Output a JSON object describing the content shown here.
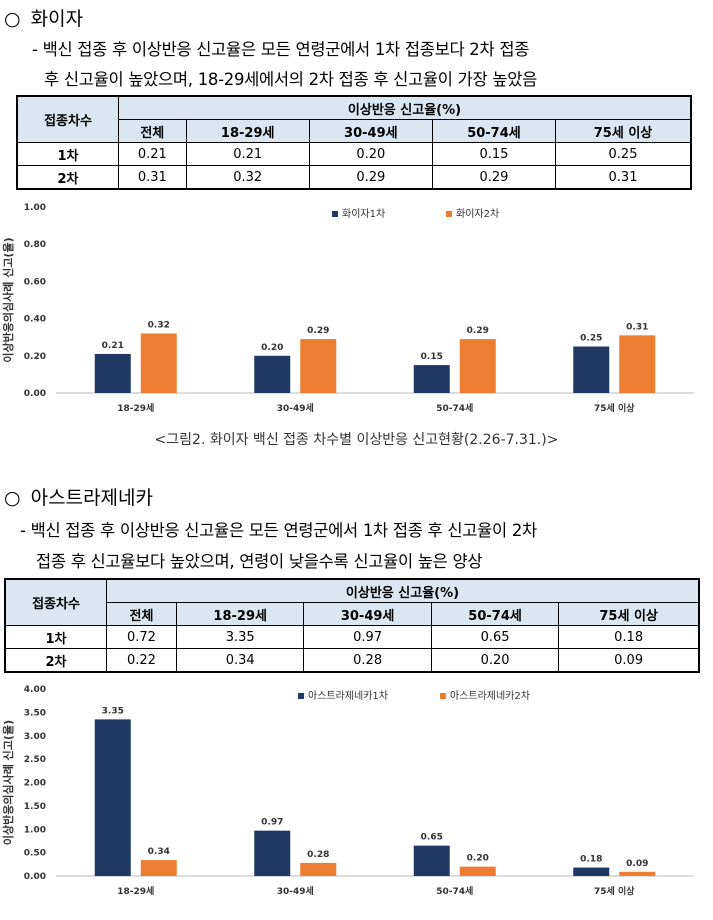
{
  "sections": [
    {
      "title": "화이자",
      "marker": "○",
      "text_lines": [
        "- 백신 접종 후 이상반응 신고율은 모든 연령군에서 1차 접종보다 2차 접종",
        "후 신고율이 높았으며, 18-29세에서의 2차 접종 후 신고율이 가장 높았음"
      ],
      "table": {
        "row_header": "접종차수",
        "group_header": "이상반응 신고율(%)",
        "columns": [
          "전체",
          "18-29세",
          "30-49세",
          "50-74세",
          "75세 이상"
        ],
        "rows": [
          {
            "label": "1차",
            "values": [
              "0.21",
              "0.21",
              "0.20",
              "0.15",
              "0.25"
            ]
          },
          {
            "label": "2차",
            "values": [
              "0.31",
              "0.32",
              "0.29",
              "0.29",
              "0.31"
            ]
          }
        ]
      },
      "caption": "<그림2. 화이자 백신 접종 차수별 이상반응 신고현황(2.26-7.31.)>"
    },
    {
      "title": "아스트라제네카",
      "marker": "○",
      "text_lines": [
        "- 백신 접종 후 이상반응 신고율은 모든 연령군에서 1차 접종 후 신고율이 2차",
        "접종 후 신고율보다 높았으며, 연령이 낮을수록 신고율이 높은 양상"
      ],
      "table": {
        "row_header": "접종차수",
        "group_header": "이상반응 신고율(%)",
        "columns": [
          "전체",
          "18-29세",
          "30-49세",
          "50-74세",
          "75세 이상"
        ],
        "rows": [
          {
            "label": "1차",
            "values": [
              "0.72",
              "3.35",
              "0.97",
              "0.65",
              "0.18"
            ]
          },
          {
            "label": "2차",
            "values": [
              "0.22",
              "0.34",
              "0.28",
              "0.20",
              "0.09"
            ]
          }
        ]
      }
    }
  ],
  "colors": {
    "series1": "#1F3864",
    "series2": "#ED7D31",
    "header_bg": "#DCE6F1"
  },
  "chart_data": [
    {
      "type": "bar",
      "ylabel": "이상반응의심사례 신고(율)",
      "categories": [
        "18-29세",
        "30-49세",
        "50-74세",
        "75세 이상"
      ],
      "series": [
        {
          "name": "화이자1차",
          "values": [
            0.21,
            0.2,
            0.15,
            0.25
          ],
          "labels": [
            "0.21",
            "0.20",
            "0.15",
            "0.25"
          ]
        },
        {
          "name": "화이자2차",
          "values": [
            0.32,
            0.29,
            0.29,
            0.31
          ],
          "labels": [
            "0.32",
            "0.29",
            "0.29",
            "0.31"
          ]
        }
      ],
      "yticks": [
        "0.00",
        "0.20",
        "0.40",
        "0.60",
        "0.80",
        "1.00"
      ],
      "ylim": [
        0,
        1.0
      ],
      "legend": "top-center"
    },
    {
      "type": "bar",
      "ylabel": "이상반응의심사례 신고(율)",
      "categories": [
        "18-29세",
        "30-49세",
        "50-74세",
        "75세 이상"
      ],
      "series": [
        {
          "name": "아스트라제네카1차",
          "values": [
            3.35,
            0.97,
            0.65,
            0.18
          ],
          "labels": [
            "3.35",
            "0.97",
            "0.65",
            "0.18"
          ]
        },
        {
          "name": "아스트라제네카2차",
          "values": [
            0.34,
            0.28,
            0.2,
            0.09
          ],
          "labels": [
            "0.34",
            "0.28",
            "0.20",
            "0.09"
          ]
        }
      ],
      "yticks": [
        "0.00",
        "0.50",
        "1.00",
        "1.50",
        "2.00",
        "2.50",
        "3.00",
        "3.50",
        "4.00"
      ],
      "ylim": [
        0,
        4.0
      ],
      "legend": "top-center"
    }
  ]
}
